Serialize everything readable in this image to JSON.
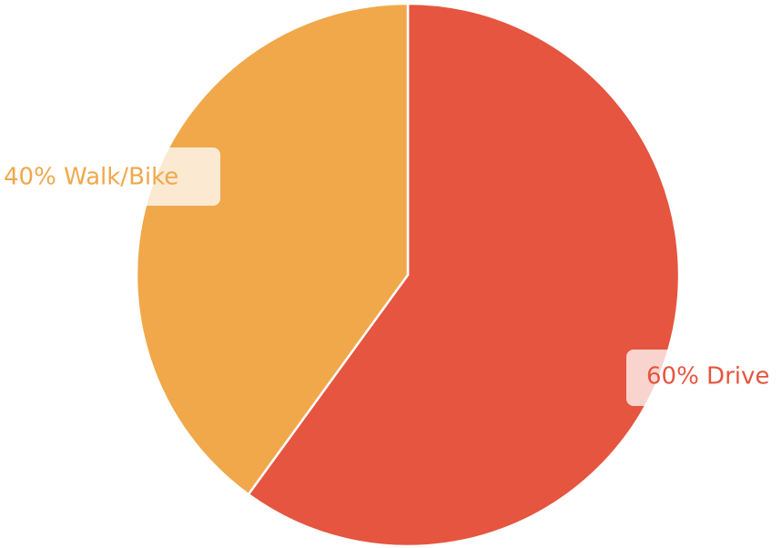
{
  "chart_data": {
    "type": "pie",
    "title": "",
    "slices": [
      {
        "label": "Drive",
        "value": 60,
        "display": "60% Drive",
        "color": "#E5553F"
      },
      {
        "label": "Walk/Bike",
        "value": 40,
        "display": "40% Walk/Bike",
        "color": "#F0A84B"
      }
    ],
    "start_angle_deg": 0,
    "direction": "clockwise",
    "slice_border_color": "#ffffff",
    "legend": "none"
  }
}
